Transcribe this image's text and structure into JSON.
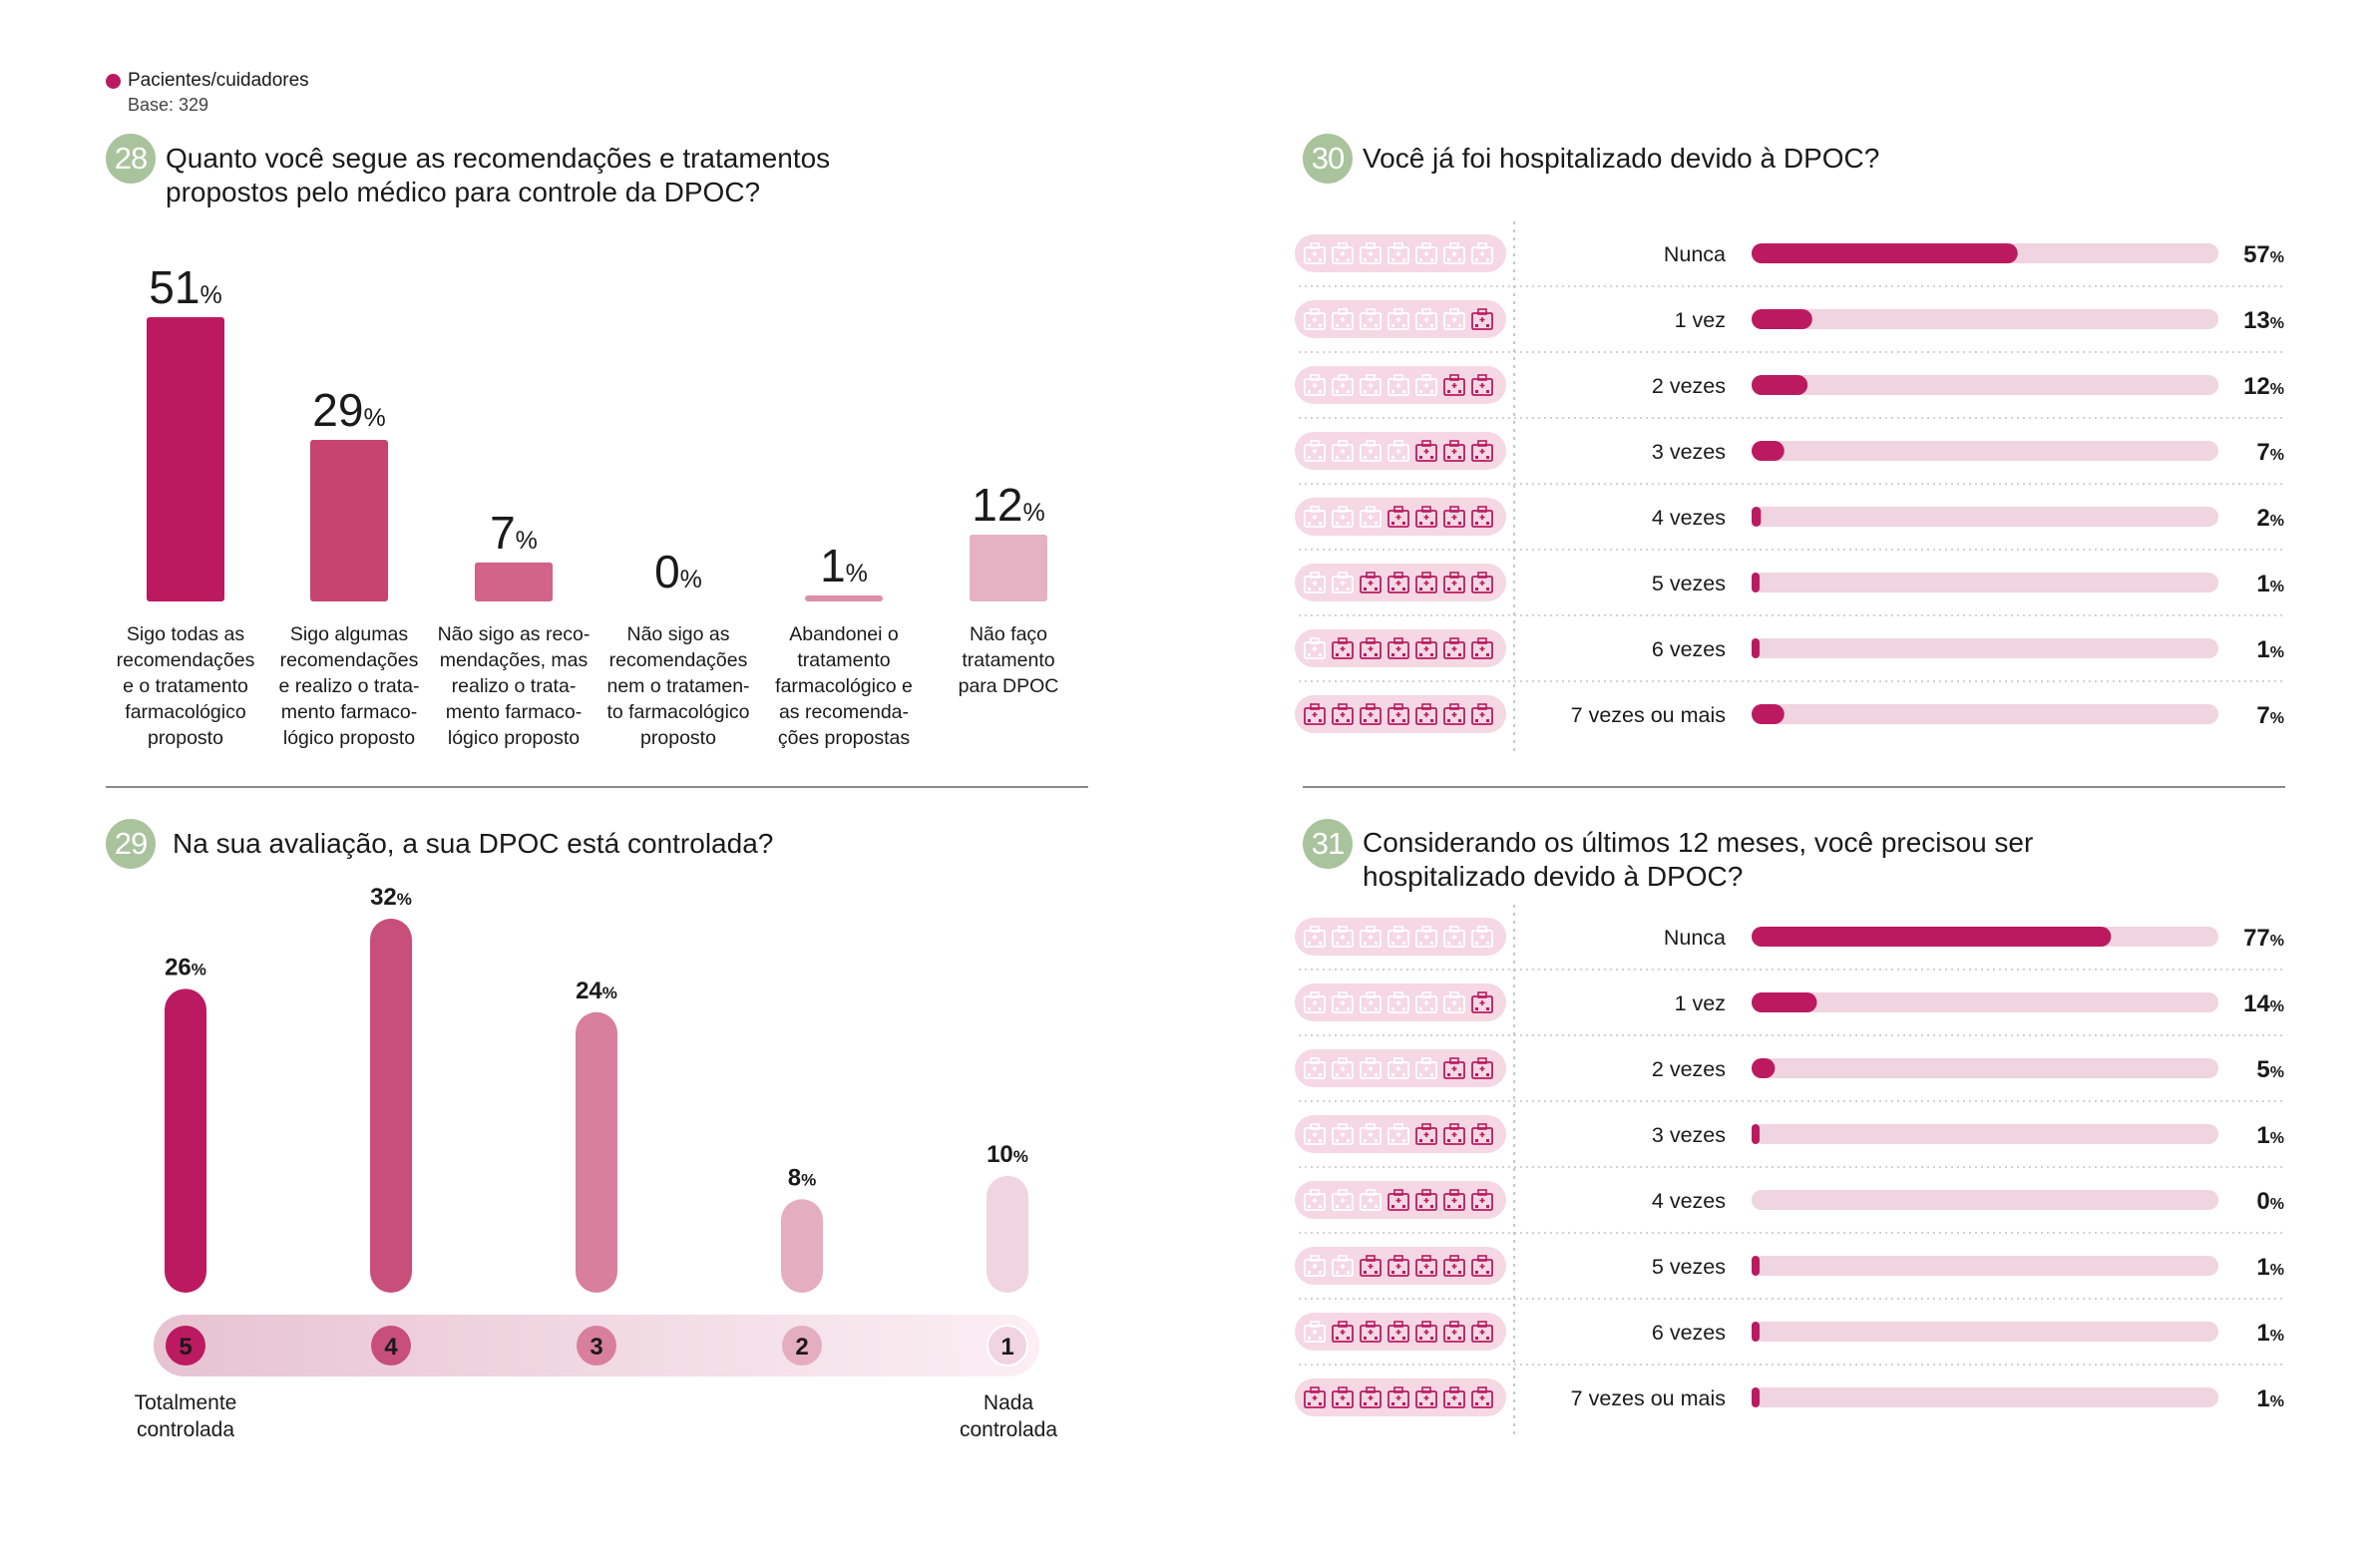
{
  "legend": {
    "label": "Pacientes/cuidadores",
    "base": "Base: 329"
  },
  "colors": {
    "accent": "#bb1a60",
    "track": "#f0d4df",
    "muted_icon": "#f7dee8",
    "question_badge": "#a9c39d"
  },
  "pct_symbol": "%",
  "q28": {
    "number": "28",
    "title_lines": [
      "Quanto você segue as recomendações e tratamentos",
      "propostos pelo médico para controle da DPOC?"
    ]
  },
  "q29": {
    "number": "29",
    "title": "Na sua avaliação, a sua DPOC está controlada?",
    "scale_left": [
      "Totalmente",
      "controlada"
    ],
    "scale_right": [
      "Nada",
      "controlada"
    ]
  },
  "q30": {
    "number": "30",
    "title": "Você já foi hospitalizado devido à DPOC?"
  },
  "q31": {
    "number": "31",
    "title_lines": [
      "Considerando os últimos 12 meses, você precisou ser",
      "hospitalizado devido à DPOC?"
    ]
  },
  "icon_name": "hospital-icon",
  "chart_data": [
    {
      "id": "q28",
      "type": "bar",
      "categories": [
        [
          "Sigo todas as",
          "recomendações",
          "e o tratamento",
          "farmacológico",
          "proposto"
        ],
        [
          "Sigo algumas",
          "recomendações",
          "e realizo o trata-",
          "mento farmaco-",
          "lógico proposto"
        ],
        [
          "Não sigo as reco-",
          "mendações, mas",
          "realizo o trata-",
          "mento farmaco-",
          "lógico proposto"
        ],
        [
          "Não sigo as",
          "recomendações",
          "nem o tratamen-",
          "to farmacológico",
          "proposto"
        ],
        [
          "Abandonei o",
          "tratamento",
          "farmacológico e",
          "as recomenda-",
          "ções propostas"
        ],
        [
          "Não faço",
          "tratamento",
          "para DPOC"
        ]
      ],
      "values": [
        51,
        29,
        7,
        0,
        1,
        12
      ],
      "unit": "%",
      "colors": [
        "#bb1a60",
        "#c6446f",
        "#d16488",
        "#d98ea9",
        "#dd8ea8",
        "#e5b1c3"
      ]
    },
    {
      "id": "q29",
      "type": "bar",
      "categories": [
        "5",
        "4",
        "3",
        "2",
        "1"
      ],
      "values": [
        26,
        32,
        24,
        8,
        10
      ],
      "unit": "%",
      "colors": [
        "#bb1a60",
        "#c84f7a",
        "#d97f9e",
        "#e5adc0",
        "#f0d4df"
      ]
    },
    {
      "id": "q30",
      "type": "bar",
      "orientation": "horizontal",
      "categories": [
        "Nunca",
        "1 vez",
        "2 vezes",
        "3 vezes",
        "4 vezes",
        "5 vezes",
        "6 vezes",
        "7 vezes ou mais"
      ],
      "values": [
        57,
        13,
        12,
        7,
        2,
        1,
        1,
        7
      ],
      "unit": "%",
      "xlim": [
        0,
        100
      ]
    },
    {
      "id": "q31",
      "type": "bar",
      "orientation": "horizontal",
      "categories": [
        "Nunca",
        "1 vez",
        "2 vezes",
        "3 vezes",
        "4 vezes",
        "5 vezes",
        "6 vezes",
        "7 vezes ou mais"
      ],
      "values": [
        77,
        14,
        5,
        1,
        0,
        1,
        1,
        1
      ],
      "unit": "%",
      "xlim": [
        0,
        100
      ]
    }
  ]
}
